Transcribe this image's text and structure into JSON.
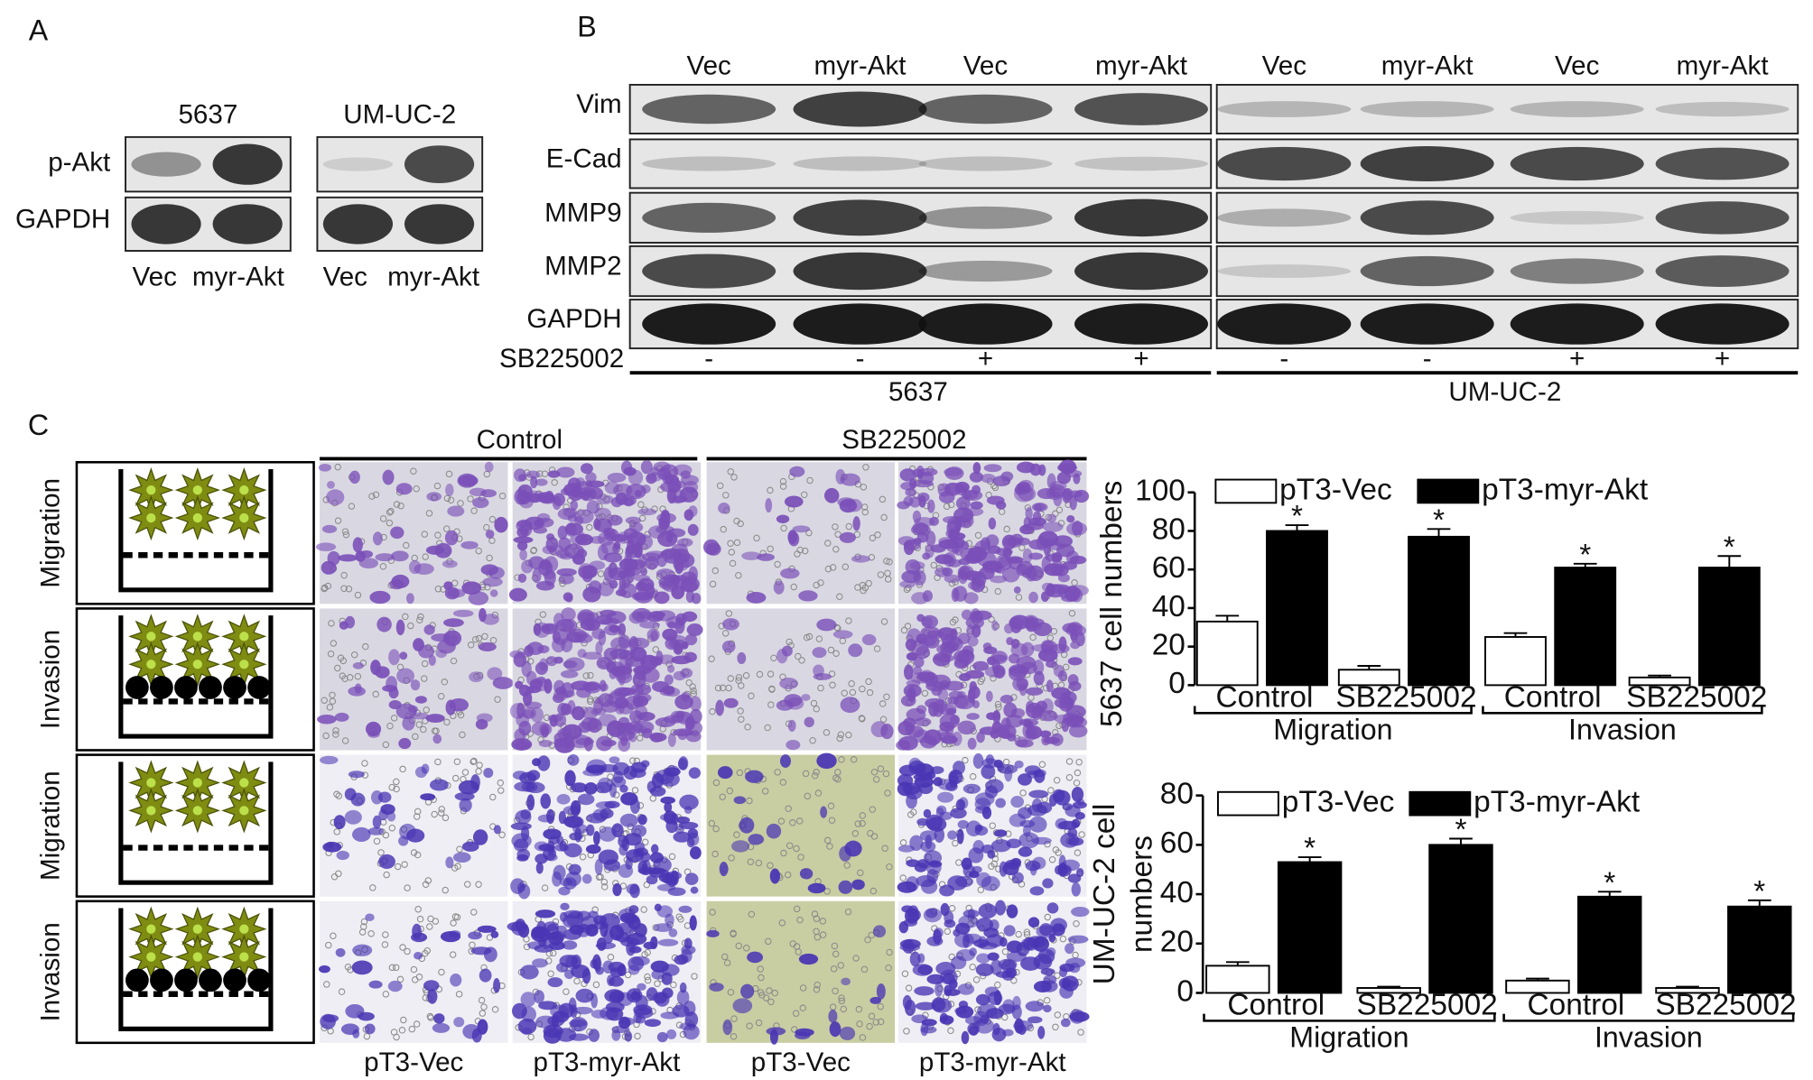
{
  "panel_a": {
    "label": "A",
    "cell_lines": [
      "5637",
      "UM-UC-2"
    ],
    "rows": [
      "p-Akt",
      "GAPDH"
    ],
    "lanes": [
      [
        "Vec",
        "myr-Akt"
      ],
      [
        "Vec",
        "myr-Akt"
      ]
    ]
  },
  "panel_b": {
    "label": "B",
    "lanes": [
      "Vec",
      "myr-Akt",
      "Vec",
      "myr-Akt",
      "Vec",
      "myr-Akt",
      "Vec",
      "myr-Akt"
    ],
    "rows": [
      "Vim",
      "E-Cad",
      "MMP9",
      "MMP2",
      "GAPDH"
    ],
    "treatment": "SB225002",
    "treatment_signs": [
      "-",
      "-",
      "+",
      "+",
      "-",
      "-",
      "+",
      "+"
    ],
    "cell_lines": [
      "5637",
      "UM-UC-2"
    ]
  },
  "panel_c": {
    "label": "C",
    "conditions": [
      "Control",
      "SB225002"
    ],
    "rows": [
      "Migration",
      "Invasion",
      "Migration",
      "Invasion"
    ],
    "columns": [
      "pT3-Vec",
      "pT3-myr-Akt",
      "pT3-Vec",
      "pT3-myr-Akt"
    ]
  },
  "chart_data": [
    {
      "type": "bar",
      "ylabel": [
        "5637 cell  numbers"
      ],
      "categories": [
        "Control",
        "SB225002",
        "Control",
        "SB225002"
      ],
      "groups": [
        "Migration",
        "Invasion"
      ],
      "series": [
        {
          "name": "pT3-Vec",
          "color": "#ffffff",
          "values": [
            33,
            8,
            25,
            4
          ],
          "errors": [
            3,
            2,
            2,
            1
          ]
        },
        {
          "name": "pT3-myr-Akt",
          "color": "#000000",
          "values": [
            80,
            77,
            61,
            61
          ],
          "errors": [
            3,
            4,
            2,
            6
          ]
        }
      ],
      "significance": [
        "*",
        "*",
        "*",
        "*"
      ],
      "ylim": [
        0,
        100
      ],
      "yticks": [
        0,
        20,
        40,
        60,
        80,
        100
      ]
    },
    {
      "type": "bar",
      "ylabel": [
        "UM-UC-2 cell",
        "numbers"
      ],
      "categories": [
        "Control",
        "SB225002",
        "Control",
        "SB225002"
      ],
      "groups": [
        "Migration",
        "Invasion"
      ],
      "series": [
        {
          "name": "pT3-Vec",
          "color": "#ffffff",
          "values": [
            11,
            2,
            5,
            2
          ],
          "errors": [
            1.5,
            0.5,
            0.8,
            0.5
          ]
        },
        {
          "name": "pT3-myr-Akt",
          "color": "#000000",
          "values": [
            53,
            60,
            39,
            35
          ],
          "errors": [
            2,
            2.5,
            2,
            2.5
          ]
        }
      ],
      "significance": [
        "*",
        "*",
        "*",
        "*"
      ],
      "ylim": [
        0,
        80
      ],
      "yticks": [
        0,
        20,
        40,
        60,
        80
      ]
    }
  ]
}
